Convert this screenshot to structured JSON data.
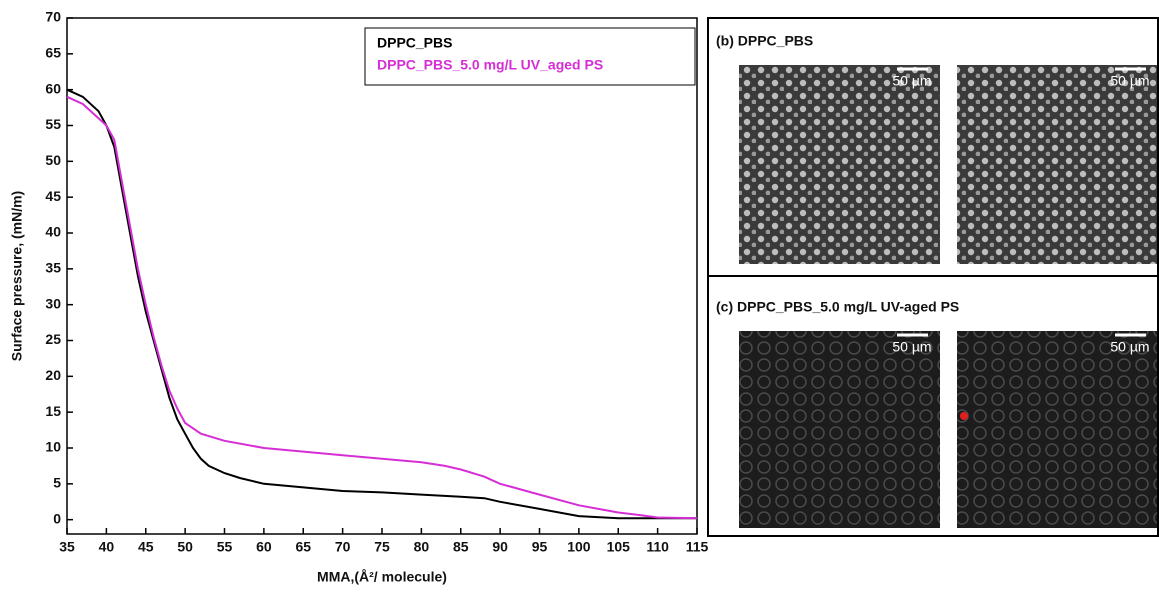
{
  "chart_data": {
    "type": "line",
    "x_label": "MMA,(Å²/ molecule)",
    "y_label": "Surface pressure, (mN/m)",
    "xlim": [
      35,
      115
    ],
    "ylim": [
      -2,
      70
    ],
    "xticks": [
      35,
      40,
      45,
      50,
      55,
      60,
      65,
      70,
      75,
      80,
      85,
      90,
      95,
      100,
      105,
      110,
      115
    ],
    "yticks": [
      0,
      5,
      10,
      15,
      20,
      25,
      30,
      35,
      40,
      45,
      50,
      55,
      60,
      65,
      70
    ],
    "legend": "upper right",
    "series": [
      {
        "name": "DPPC_PBS",
        "color": "#000000",
        "x": [
          35,
          37,
          39,
          40,
          41,
          42,
          43,
          44,
          45,
          46,
          47,
          48,
          49,
          50,
          51,
          52,
          53,
          55,
          57,
          60,
          65,
          70,
          75,
          80,
          85,
          88,
          90,
          95,
          100,
          105,
          110,
          115
        ],
        "values": [
          60,
          59,
          57,
          55,
          52,
          46,
          40,
          34,
          29,
          25,
          21,
          17,
          14,
          12,
          10,
          8.5,
          7.5,
          6.5,
          5.8,
          5,
          4.5,
          4,
          3.8,
          3.5,
          3.2,
          3,
          2.5,
          1.5,
          0.5,
          0.2,
          0.2,
          0.2
        ]
      },
      {
        "name": "DPPC_PBS_5.0 mg/L UV_aged PS",
        "color": "#d62ed6",
        "x": [
          35,
          37,
          39,
          40,
          41,
          42,
          43,
          44,
          45,
          46,
          47,
          48,
          49,
          50,
          52,
          55,
          60,
          65,
          70,
          75,
          80,
          83,
          85,
          88,
          90,
          95,
          100,
          105,
          108,
          110,
          115
        ],
        "values": [
          59,
          58,
          56,
          55,
          53,
          47,
          41,
          35,
          30,
          25.5,
          21.5,
          18,
          15.5,
          13.5,
          12,
          11,
          10,
          9.5,
          9,
          8.5,
          8,
          7.5,
          7,
          6,
          5,
          3.5,
          2,
          1,
          0.6,
          0.3,
          0.2
        ]
      }
    ]
  },
  "panels": [
    {
      "title": "(b) DPPC_PBS",
      "scale_labels": [
        "50 µm",
        "50 µm"
      ]
    },
    {
      "title": "(c) DPPC_PBS_5.0 mg/L UV-aged PS",
      "scale_labels": [
        "50 µm",
        "50 µm"
      ]
    }
  ]
}
